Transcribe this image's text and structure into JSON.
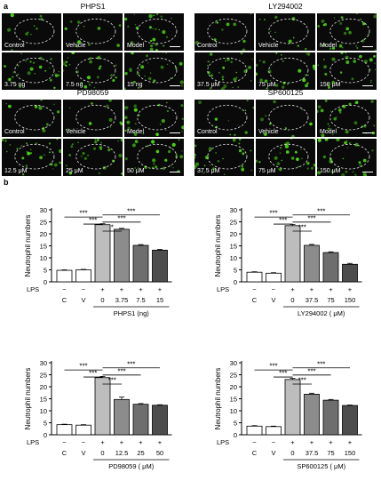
{
  "panel_labels": {
    "a": "a",
    "b": "b"
  },
  "micrographs": [
    {
      "title": "PHPS1",
      "tiles": [
        "Control",
        "Vehicle",
        "Model",
        "3.75 ng",
        "7.5 ng",
        "15 ng"
      ]
    },
    {
      "title": "LY294002",
      "tiles": [
        "Control",
        "Vehicle",
        "Model",
        "37.5 μM",
        "75 μM",
        "150 μM"
      ]
    },
    {
      "title": "PD98059",
      "tiles": [
        "Control",
        "Vehicle",
        "Model",
        "12.5 μM",
        "25 μM",
        "50 μM"
      ]
    },
    {
      "title": "SP600125",
      "tiles": [
        "Control",
        "Vehicle",
        "Model",
        "37.5 μM",
        "75 μM",
        "150 μM"
      ]
    }
  ],
  "colors": {
    "fluorescence": "#4cd11c",
    "tile_background": "#0a0a0a"
  },
  "chart_data": [
    {
      "type": "bar",
      "ylabel": "Neutrophil numbers",
      "ylim": [
        0,
        30
      ],
      "yticks": [
        "0",
        "5",
        "10",
        "15",
        "20",
        "25",
        "30"
      ],
      "row_label": "LPS",
      "lps": [
        "−",
        "−",
        "+",
        "+",
        "+",
        "+"
      ],
      "categories": [
        "C",
        "V",
        "0",
        "3.75",
        "7.5",
        "15"
      ],
      "values": [
        4.8,
        5.0,
        23.8,
        21.9,
        15.2,
        13.2
      ],
      "errors": [
        0.2,
        0.2,
        0.4,
        0.4,
        0.3,
        0.3
      ],
      "xlabel": "PHPS1 (ng)",
      "bar_colors": [
        "#ffffff",
        "#ffffff",
        "#bdbdbd",
        "#8c8c8c",
        "#6e6e6e",
        "#4d4d4d"
      ],
      "significance": [
        {
          "from": 0,
          "to": 2,
          "label": "***"
        },
        {
          "from": 1,
          "to": 2,
          "label": "***"
        },
        {
          "from": 2,
          "to": 3,
          "label": "*"
        },
        {
          "from": 2,
          "to": 4,
          "label": "***"
        },
        {
          "from": 2,
          "to": 5,
          "label": "***"
        }
      ]
    },
    {
      "type": "bar",
      "ylabel": "Neutrophil numbers",
      "ylim": [
        0,
        30
      ],
      "yticks": [
        "0",
        "5",
        "10",
        "15",
        "20",
        "25",
        "30"
      ],
      "row_label": "LPS",
      "lps": [
        "−",
        "−",
        "+",
        "+",
        "+",
        "+"
      ],
      "categories": [
        "C",
        "V",
        "0",
        "37.5",
        "75",
        "150"
      ],
      "values": [
        4.0,
        3.6,
        23.4,
        15.2,
        12.2,
        7.3
      ],
      "errors": [
        0.2,
        0.2,
        0.5,
        0.4,
        0.3,
        0.4
      ],
      "xlabel": "LY294002 ( μM)",
      "bar_colors": [
        "#ffffff",
        "#ffffff",
        "#bdbdbd",
        "#8c8c8c",
        "#6e6e6e",
        "#4d4d4d"
      ],
      "significance": [
        {
          "from": 0,
          "to": 2,
          "label": "***"
        },
        {
          "from": 1,
          "to": 2,
          "label": "***"
        },
        {
          "from": 2,
          "to": 3,
          "label": "***"
        },
        {
          "from": 2,
          "to": 4,
          "label": "***"
        },
        {
          "from": 2,
          "to": 5,
          "label": "***"
        }
      ]
    },
    {
      "type": "bar",
      "ylabel": "Neutrophil numbers",
      "ylim": [
        0,
        30
      ],
      "yticks": [
        "0",
        "5",
        "10",
        "15",
        "20",
        "25",
        "30"
      ],
      "row_label": "LPS",
      "lps": [
        "−",
        "−",
        "+",
        "+",
        "+",
        "+"
      ],
      "categories": [
        "C",
        "V",
        "0",
        "12.5",
        "25",
        "50"
      ],
      "values": [
        4.2,
        4.0,
        23.8,
        14.7,
        12.7,
        12.3
      ],
      "errors": [
        0.2,
        0.2,
        0.5,
        1.0,
        0.3,
        0.2
      ],
      "xlabel": "PD98059 ( μM)",
      "bar_colors": [
        "#ffffff",
        "#ffffff",
        "#bdbdbd",
        "#8c8c8c",
        "#6e6e6e",
        "#4d4d4d"
      ],
      "significance": [
        {
          "from": 0,
          "to": 2,
          "label": "***"
        },
        {
          "from": 1,
          "to": 2,
          "label": "***"
        },
        {
          "from": 2,
          "to": 3,
          "label": "***"
        },
        {
          "from": 2,
          "to": 4,
          "label": "***"
        },
        {
          "from": 2,
          "to": 5,
          "label": "***"
        }
      ]
    },
    {
      "type": "bar",
      "ylabel": "Neutrophil numbers",
      "ylim": [
        0,
        30
      ],
      "yticks": [
        "0",
        "5",
        "10",
        "15",
        "20",
        "25",
        "30"
      ],
      "row_label": "LPS",
      "lps": [
        "−",
        "−",
        "+",
        "+",
        "+",
        "+"
      ],
      "categories": [
        "C",
        "V",
        "0",
        "37.5",
        "75",
        "150"
      ],
      "values": [
        3.6,
        3.4,
        23.0,
        16.9,
        14.4,
        12.2
      ],
      "errors": [
        0.2,
        0.2,
        0.5,
        0.4,
        0.3,
        0.2
      ],
      "xlabel": "SP600125 ( μM)",
      "bar_colors": [
        "#ffffff",
        "#ffffff",
        "#bdbdbd",
        "#8c8c8c",
        "#6e6e6e",
        "#4d4d4d"
      ],
      "significance": [
        {
          "from": 0,
          "to": 2,
          "label": "***"
        },
        {
          "from": 1,
          "to": 2,
          "label": "***"
        },
        {
          "from": 2,
          "to": 3,
          "label": "***"
        },
        {
          "from": 2,
          "to": 4,
          "label": "***"
        },
        {
          "from": 2,
          "to": 5,
          "label": "***"
        }
      ]
    }
  ]
}
